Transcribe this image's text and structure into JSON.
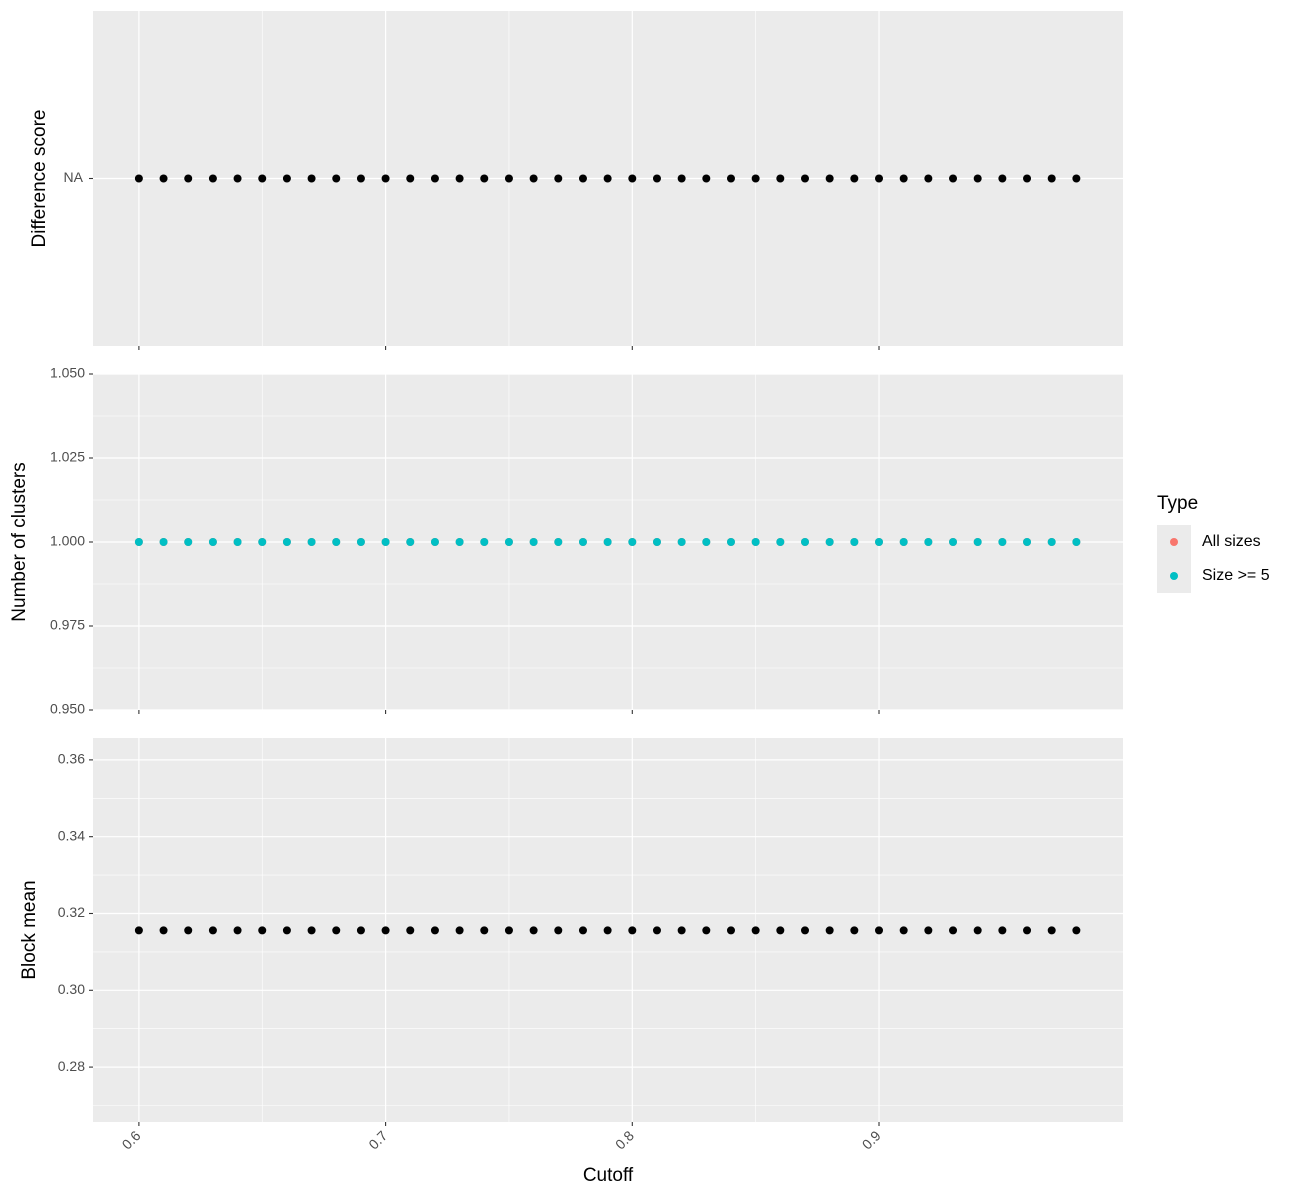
{
  "chart_data": [
    {
      "type": "scatter",
      "ylabel": "Difference score",
      "x": [
        0.6,
        0.61,
        0.62,
        0.63,
        0.64,
        0.65,
        0.66,
        0.67,
        0.68,
        0.69,
        0.7,
        0.71,
        0.72,
        0.73,
        0.74,
        0.75,
        0.76,
        0.77,
        0.78,
        0.79,
        0.8,
        0.81,
        0.82,
        0.83,
        0.84,
        0.85,
        0.86,
        0.87,
        0.88,
        0.89,
        0.9,
        0.91,
        0.92,
        0.93,
        0.94,
        0.95,
        0.96,
        0.97,
        0.98
      ],
      "xlim": [
        0.5814,
        0.9989
      ],
      "xticks": [
        0.6,
        0.7,
        0.8,
        0.9
      ],
      "ycategories": [
        "NA"
      ],
      "series": [
        {
          "color": "#000000",
          "values": [
            "NA",
            "NA",
            "NA",
            "NA",
            "NA",
            "NA",
            "NA",
            "NA",
            "NA",
            "NA",
            "NA",
            "NA",
            "NA",
            "NA",
            "NA",
            "NA",
            "NA",
            "NA",
            "NA",
            "NA",
            "NA",
            "NA",
            "NA",
            "NA",
            "NA",
            "NA",
            "NA",
            "NA",
            "NA",
            "NA",
            "NA",
            "NA",
            "NA",
            "NA",
            "NA",
            "NA",
            "NA",
            "NA",
            "NA"
          ]
        }
      ],
      "grid": true
    },
    {
      "type": "scatter",
      "ylabel": "Number of clusters",
      "x": [
        0.6,
        0.61,
        0.62,
        0.63,
        0.64,
        0.65,
        0.66,
        0.67,
        0.68,
        0.69,
        0.7,
        0.71,
        0.72,
        0.73,
        0.74,
        0.75,
        0.76,
        0.77,
        0.78,
        0.79,
        0.8,
        0.81,
        0.82,
        0.83,
        0.84,
        0.85,
        0.86,
        0.87,
        0.88,
        0.89,
        0.9,
        0.91,
        0.92,
        0.93,
        0.94,
        0.95,
        0.96,
        0.97,
        0.98
      ],
      "xlim": [
        0.5814,
        0.9989
      ],
      "xticks": [
        0.6,
        0.7,
        0.8,
        0.9
      ],
      "ylim": [
        0.95,
        1.05
      ],
      "yticks": [
        {
          "value": 0.95,
          "label": "0.950"
        },
        {
          "value": 0.975,
          "label": "0.975"
        },
        {
          "value": 1,
          "label": "1.000"
        },
        {
          "value": 1.025,
          "label": "1.025"
        },
        {
          "value": 1.05,
          "label": "1.050"
        }
      ],
      "legend_title": "Type",
      "legend": "right",
      "series": [
        {
          "name": "All sizes",
          "color": "#F8766D",
          "values": [
            1,
            1,
            1,
            1,
            1,
            1,
            1,
            1,
            1,
            1,
            1,
            1,
            1,
            1,
            1,
            1,
            1,
            1,
            1,
            1,
            1,
            1,
            1,
            1,
            1,
            1,
            1,
            1,
            1,
            1,
            1,
            1,
            1,
            1,
            1,
            1,
            1,
            1,
            1
          ]
        },
        {
          "name": "Size >= 5",
          "color": "#00BFC4",
          "values": [
            1,
            1,
            1,
            1,
            1,
            1,
            1,
            1,
            1,
            1,
            1,
            1,
            1,
            1,
            1,
            1,
            1,
            1,
            1,
            1,
            1,
            1,
            1,
            1,
            1,
            1,
            1,
            1,
            1,
            1,
            1,
            1,
            1,
            1,
            1,
            1,
            1,
            1,
            1
          ]
        }
      ],
      "grid": true
    },
    {
      "type": "scatter",
      "ylabel": "Block mean",
      "xlabel": "Cutoff",
      "x": [
        0.6,
        0.61,
        0.62,
        0.63,
        0.64,
        0.65,
        0.66,
        0.67,
        0.68,
        0.69,
        0.7,
        0.71,
        0.72,
        0.73,
        0.74,
        0.75,
        0.76,
        0.77,
        0.78,
        0.79,
        0.8,
        0.81,
        0.82,
        0.83,
        0.84,
        0.85,
        0.86,
        0.87,
        0.88,
        0.89,
        0.9,
        0.91,
        0.92,
        0.93,
        0.94,
        0.95,
        0.96,
        0.97,
        0.98
      ],
      "xlim": [
        0.5814,
        0.9989
      ],
      "xticks": [
        0.6,
        0.7,
        0.8,
        0.9
      ],
      "ylim": [
        0.2657,
        0.3657
      ],
      "yticks": [
        0.28,
        {
          "value": 0.3,
          "label": "0.30"
        },
        0.32,
        0.34,
        0.36
      ],
      "series": [
        {
          "color": "#000000",
          "values": [
            0.3156,
            0.3156,
            0.3156,
            0.3156,
            0.3156,
            0.3156,
            0.3156,
            0.3156,
            0.3156,
            0.3156,
            0.3156,
            0.3156,
            0.3156,
            0.3156,
            0.3156,
            0.3156,
            0.3156,
            0.3156,
            0.3156,
            0.3156,
            0.3156,
            0.3156,
            0.3156,
            0.3156,
            0.3156,
            0.3156,
            0.3156,
            0.3156,
            0.3156,
            0.3156,
            0.3156,
            0.3156,
            0.3156,
            0.3156,
            0.3156,
            0.3156,
            0.3156,
            0.3156,
            0.3156
          ]
        }
      ],
      "grid": true
    }
  ]
}
